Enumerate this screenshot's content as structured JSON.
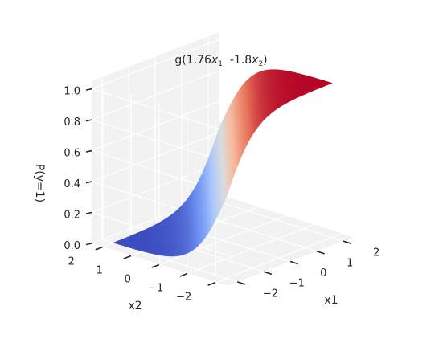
{
  "chart_data": {
    "type": "surface",
    "title": "g(1.76$x_1$  -1.8$x_2$)",
    "title_parts": {
      "prefix": "g(1.76",
      "var1": "x",
      "sub1": "1",
      "middle": "  -1.8",
      "var2": "x",
      "sub2": "2",
      "suffix": ")"
    },
    "function": "logistic sigmoid g(z) = 1/(1+exp(-z)), z = 1.76*x1 - 1.8*x2",
    "coefficients": {
      "x1": 1.76,
      "x2": -1.8
    },
    "xlabel": "x1",
    "ylabel": "x2",
    "zlabel": "P(y=1)",
    "xlim": [
      -2.4,
      2.4
    ],
    "ylim": [
      -2.4,
      2.4
    ],
    "zlim": [
      0.0,
      1.05
    ],
    "x_ticks": [
      {
        "value": -2,
        "label": "−2"
      },
      {
        "value": -1,
        "label": "−1"
      },
      {
        "value": 0,
        "label": "0"
      },
      {
        "value": 1,
        "label": "1"
      },
      {
        "value": 2,
        "label": "2"
      }
    ],
    "y_ticks": [
      {
        "value": -2,
        "label": "−2"
      },
      {
        "value": -1,
        "label": "−1"
      },
      {
        "value": 0,
        "label": "0"
      },
      {
        "value": 1,
        "label": "1"
      },
      {
        "value": 2,
        "label": "2"
      }
    ],
    "z_ticks": [
      {
        "value": 0.0,
        "label": "0.0"
      },
      {
        "value": 0.2,
        "label": "0.2"
      },
      {
        "value": 0.4,
        "label": "0.4"
      },
      {
        "value": 0.6,
        "label": "0.6"
      },
      {
        "value": 0.8,
        "label": "0.8"
      },
      {
        "value": 1.0,
        "label": "1.0"
      }
    ],
    "colormap": "coolwarm",
    "colormap_stops": [
      "#3b4cc0",
      "#6f92f3",
      "#aac7fd",
      "#dddcdc",
      "#f7b89c",
      "#e7745b",
      "#b40426"
    ],
    "pane_color": "#f2f2f2",
    "grid": true,
    "grid_color": "#ffffff",
    "view": {
      "elevation_deg": 15,
      "azimuth_deg": -135
    }
  }
}
